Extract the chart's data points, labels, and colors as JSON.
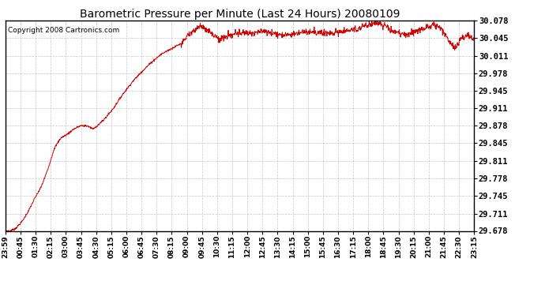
{
  "title": "Barometric Pressure per Minute (Last 24 Hours) 20080109",
  "copyright": "Copyright 2008 Cartronics.com",
  "line_color": "#cc0000",
  "bg_color": "#ffffff",
  "plot_bg_color": "#ffffff",
  "grid_color": "#bbbbbb",
  "ylim": [
    29.678,
    30.078
  ],
  "yticks": [
    29.678,
    29.711,
    29.745,
    29.778,
    29.811,
    29.845,
    29.878,
    29.911,
    29.945,
    29.978,
    30.011,
    30.045,
    30.078
  ],
  "xtick_labels": [
    "23:59",
    "00:45",
    "01:30",
    "02:15",
    "03:00",
    "03:45",
    "04:30",
    "05:15",
    "06:00",
    "06:45",
    "07:30",
    "08:15",
    "09:00",
    "09:45",
    "10:30",
    "11:15",
    "12:00",
    "12:45",
    "13:30",
    "14:15",
    "15:00",
    "15:45",
    "16:30",
    "17:15",
    "18:00",
    "18:45",
    "19:30",
    "20:15",
    "21:00",
    "21:45",
    "22:30",
    "23:15"
  ],
  "waypoints_x": [
    0,
    15,
    30,
    50,
    70,
    90,
    110,
    130,
    150,
    170,
    190,
    210,
    230,
    250,
    270,
    300,
    330,
    360,
    390,
    420,
    450,
    480,
    510,
    540,
    560,
    580,
    600,
    620,
    640,
    660,
    690,
    720,
    760,
    800,
    840,
    880,
    920,
    960,
    1000,
    1040,
    1080,
    1100,
    1120,
    1140,
    1160,
    1180,
    1200,
    1220,
    1240,
    1260,
    1280,
    1300,
    1320,
    1340,
    1360,
    1380,
    1400,
    1420,
    1439
  ],
  "waypoints_y": [
    29.678,
    29.678,
    29.682,
    29.695,
    29.715,
    29.74,
    29.762,
    29.795,
    29.835,
    29.855,
    29.862,
    29.872,
    29.878,
    29.878,
    29.872,
    29.888,
    29.91,
    29.938,
    29.962,
    29.982,
    30.0,
    30.015,
    30.025,
    30.035,
    30.048,
    30.06,
    30.068,
    30.062,
    30.05,
    30.043,
    30.05,
    30.055,
    30.055,
    30.058,
    30.052,
    30.052,
    30.058,
    30.055,
    30.055,
    30.058,
    30.062,
    30.068,
    30.072,
    30.075,
    30.07,
    30.062,
    30.055,
    30.052,
    30.052,
    30.058,
    30.062,
    30.068,
    30.07,
    30.06,
    30.042,
    30.025,
    30.045,
    30.05,
    30.042
  ]
}
